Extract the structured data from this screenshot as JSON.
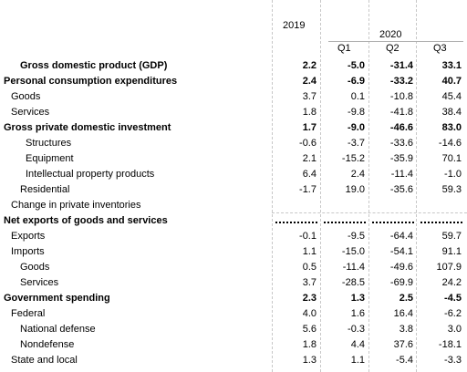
{
  "header": {
    "year_2019": "2019",
    "year_2020": "2020",
    "q1": "Q1",
    "q2": "Q2",
    "q3": "Q3"
  },
  "rows": [
    {
      "label": "Gross domestic product (GDP)",
      "indent": 2,
      "bold": true,
      "v2019": "2.2",
      "q1": "-5.0",
      "q2": "-31.4",
      "q3": "33.1"
    },
    {
      "label": "Personal consumption expenditures",
      "indent": 0,
      "bold": true,
      "v2019": "2.4",
      "q1": "-6.9",
      "q2": "-33.2",
      "q3": "40.7"
    },
    {
      "label": "Goods",
      "indent": 1,
      "bold": false,
      "v2019": "3.7",
      "q1": "0.1",
      "q2": "-10.8",
      "q3": "45.4"
    },
    {
      "label": "Services",
      "indent": 1,
      "bold": false,
      "v2019": "1.8",
      "q1": "-9.8",
      "q2": "-41.8",
      "q3": "38.4"
    },
    {
      "label": "Gross private domestic investment",
      "indent": 0,
      "bold": true,
      "v2019": "1.7",
      "q1": "-9.0",
      "q2": "-46.6",
      "q3": "83.0"
    },
    {
      "label": "Structures",
      "indent": 3,
      "bold": false,
      "v2019": "-0.6",
      "q1": "-3.7",
      "q2": "-33.6",
      "q3": "-14.6"
    },
    {
      "label": "Equipment",
      "indent": 3,
      "bold": false,
      "v2019": "2.1",
      "q1": "-15.2",
      "q2": "-35.9",
      "q3": "70.1"
    },
    {
      "label": "Intellectual property products",
      "indent": 3,
      "bold": false,
      "v2019": "6.4",
      "q1": "2.4",
      "q2": "-11.4",
      "q3": "-1.0"
    },
    {
      "label": "Residential",
      "indent": 2,
      "bold": false,
      "v2019": "-1.7",
      "q1": "19.0",
      "q2": "-35.6",
      "q3": "59.3"
    },
    {
      "label": "Change in private inventories",
      "indent": 1,
      "bold": false,
      "v2019": "",
      "q1": "",
      "q2": "",
      "q3": ""
    },
    {
      "label": "Net exports of goods and services",
      "indent": 0,
      "bold": true,
      "dots": true,
      "v2019": "",
      "q1": "",
      "q2": "",
      "q3": ""
    },
    {
      "label": "Exports",
      "indent": 1,
      "bold": false,
      "v2019": "-0.1",
      "q1": "-9.5",
      "q2": "-64.4",
      "q3": "59.7"
    },
    {
      "label": "Imports",
      "indent": 1,
      "bold": false,
      "v2019": "1.1",
      "q1": "-15.0",
      "q2": "-54.1",
      "q3": "91.1"
    },
    {
      "label": "Goods",
      "indent": 2,
      "bold": false,
      "v2019": "0.5",
      "q1": "-11.4",
      "q2": "-49.6",
      "q3": "107.9"
    },
    {
      "label": "Services",
      "indent": 2,
      "bold": false,
      "v2019": "3.7",
      "q1": "-28.5",
      "q2": "-69.9",
      "q3": "24.2"
    },
    {
      "label": "Government spending",
      "indent": 0,
      "bold": true,
      "v2019": "2.3",
      "q1": "1.3",
      "q2": "2.5",
      "q3": "-4.5"
    },
    {
      "label": "Federal",
      "indent": 1,
      "bold": false,
      "v2019": "4.0",
      "q1": "1.6",
      "q2": "16.4",
      "q3": "-6.2"
    },
    {
      "label": "National defense",
      "indent": 2,
      "bold": false,
      "v2019": "5.6",
      "q1": "-0.3",
      "q2": "3.8",
      "q3": "3.0"
    },
    {
      "label": "Nondefense",
      "indent": 2,
      "bold": false,
      "v2019": "1.8",
      "q1": "4.4",
      "q2": "37.6",
      "q3": "-18.1"
    },
    {
      "label": "State and local",
      "indent": 1,
      "bold": false,
      "v2019": "1.3",
      "q1": "1.1",
      "q2": "-5.4",
      "q3": "-3.3"
    }
  ]
}
